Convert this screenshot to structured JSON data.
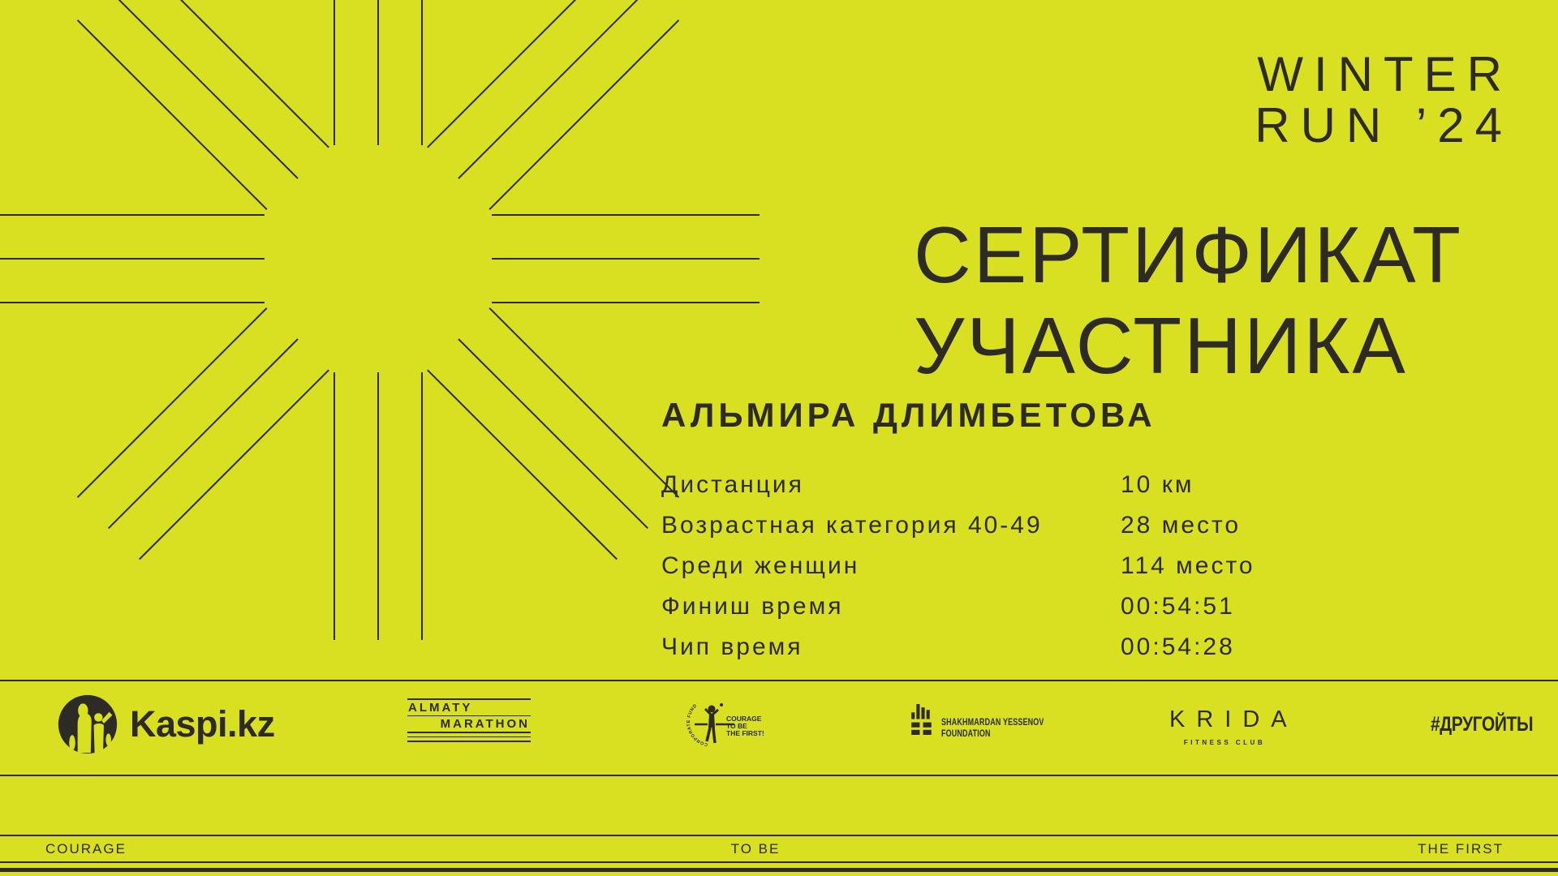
{
  "page": {
    "colors": {
      "background": "#d8e021",
      "ink": "#2d2b24"
    }
  },
  "header": {
    "line1": "WINTER",
    "line2": "RUN ’24"
  },
  "certificate": {
    "title_line1": "СЕРТИФИКАТ",
    "title_line2": "УЧАСТНИКА",
    "participant_name": "АЛЬМИРА ДЛИМБЕТОВА",
    "results": [
      {
        "label": "Дистанция",
        "value": "10 км"
      },
      {
        "label": "Возрастная категория 40-49",
        "value": "28 место"
      },
      {
        "label": "Среди женщин",
        "value": "114 место"
      },
      {
        "label": "Финиш время",
        "value": "00:54:51"
      },
      {
        "label": "Чип время",
        "value": "00:54:28"
      }
    ]
  },
  "sponsors": {
    "kaspi": {
      "name": "Kaspi.kz"
    },
    "almaty_marathon": {
      "line1": "ALMATY",
      "line2": "MARATHON"
    },
    "courage_fund": {
      "arc_text": "CORPORATE FUND",
      "slogan_line1": "COURAGE",
      "slogan_line2": "TO BE",
      "slogan_line3": "THE FIRST!"
    },
    "yessenov": {
      "line1": "SHAKHMARDAN YESSENOV",
      "line2": "FOUNDATION"
    },
    "krida": {
      "name": "KRIDA",
      "subtitle": "FITNESS CLUB"
    },
    "hashtag": {
      "label": "#ДРУГОЙТЫ"
    }
  },
  "footer": {
    "left": "COURAGE",
    "center": "TO BE",
    "right": "THE FIRST"
  }
}
